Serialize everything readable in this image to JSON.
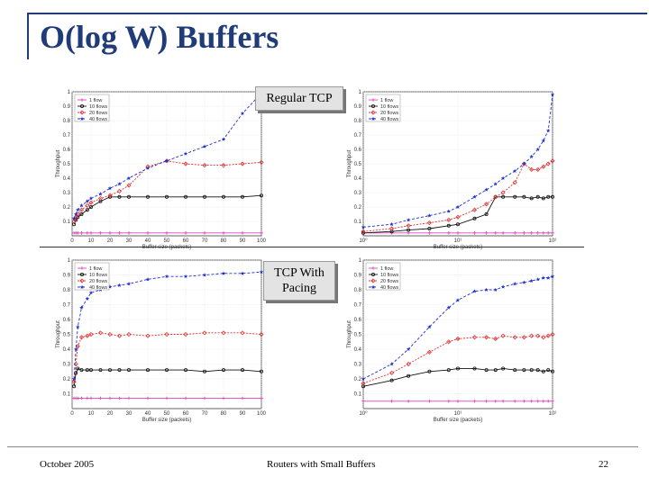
{
  "slide": {
    "title": "O(log W) Buffers",
    "label_regular": "Regular TCP",
    "label_pacing": "TCP With Pacing",
    "footer_left": "October 2005",
    "footer_center": "Routers with Small Buffers",
    "footer_right": "22"
  },
  "legend_labels": [
    "1 flow",
    "10 flows",
    "20 flows",
    "40 flows"
  ],
  "colors": {
    "1 flow": "#e040c0",
    "10 flows": "#111111",
    "20 flows": "#e03030",
    "40 flows": "#2030d0",
    "accent": "#1f3b78"
  },
  "chart_data": [
    {
      "type": "line",
      "xlabel": "Buffer size (packets)",
      "ylabel": "Throughput",
      "xlim": [
        0,
        100
      ],
      "ylim": [
        0,
        1
      ],
      "xticks": [
        0,
        10,
        20,
        30,
        40,
        50,
        60,
        70,
        80,
        90,
        100
      ],
      "yticks": [
        0.1,
        0.2,
        0.3,
        0.4,
        0.5,
        0.6,
        0.7,
        0.8,
        0.9,
        1
      ],
      "x": [
        1,
        2,
        3,
        5,
        8,
        10,
        15,
        20,
        25,
        30,
        40,
        50,
        60,
        70,
        80,
        90,
        100
      ],
      "series": [
        {
          "name": "1 flow",
          "values": [
            0.02,
            0.02,
            0.02,
            0.02,
            0.02,
            0.02,
            0.02,
            0.02,
            0.02,
            0.02,
            0.02,
            0.02,
            0.02,
            0.02,
            0.02,
            0.02,
            0.02
          ]
        },
        {
          "name": "10 flows",
          "values": [
            0.08,
            0.11,
            0.13,
            0.15,
            0.18,
            0.2,
            0.24,
            0.27,
            0.27,
            0.27,
            0.27,
            0.27,
            0.27,
            0.27,
            0.27,
            0.27,
            0.28
          ]
        },
        {
          "name": "20 flows",
          "values": [
            0.1,
            0.13,
            0.15,
            0.18,
            0.21,
            0.23,
            0.26,
            0.28,
            0.31,
            0.35,
            0.48,
            0.52,
            0.5,
            0.49,
            0.49,
            0.5,
            0.51
          ]
        },
        {
          "name": "40 flows",
          "values": [
            0.12,
            0.15,
            0.18,
            0.21,
            0.24,
            0.26,
            0.29,
            0.33,
            0.36,
            0.4,
            0.47,
            0.52,
            0.57,
            0.62,
            0.67,
            0.85,
            0.99
          ]
        }
      ]
    },
    {
      "type": "line",
      "xlabel": "Buffer size (packets)",
      "ylabel": "Throughput",
      "xscale": "log",
      "xlim": [
        1,
        100
      ],
      "ylim": [
        0,
        1
      ],
      "xticks": [
        1,
        10,
        100
      ],
      "xtick_labels": [
        "10⁰",
        "10¹",
        "10²"
      ],
      "yticks": [
        0.1,
        0.2,
        0.3,
        0.4,
        0.5,
        0.6,
        0.7,
        0.8,
        0.9,
        1
      ],
      "x": [
        1,
        2,
        3,
        5,
        8,
        10,
        15,
        20,
        25,
        30,
        40,
        50,
        60,
        70,
        80,
        90,
        100
      ],
      "series": [
        {
          "name": "1 flow",
          "values": [
            0.02,
            0.02,
            0.02,
            0.02,
            0.02,
            0.02,
            0.02,
            0.02,
            0.02,
            0.02,
            0.02,
            0.02,
            0.02,
            0.02,
            0.02,
            0.02,
            0.02
          ]
        },
        {
          "name": "10 flows",
          "values": [
            0.02,
            0.03,
            0.04,
            0.05,
            0.07,
            0.08,
            0.12,
            0.15,
            0.27,
            0.27,
            0.27,
            0.27,
            0.26,
            0.27,
            0.26,
            0.27,
            0.27
          ]
        },
        {
          "name": "20 flows",
          "values": [
            0.03,
            0.05,
            0.07,
            0.09,
            0.11,
            0.13,
            0.18,
            0.22,
            0.27,
            0.3,
            0.37,
            0.5,
            0.46,
            0.46,
            0.48,
            0.5,
            0.52
          ]
        },
        {
          "name": "40 flows",
          "values": [
            0.06,
            0.08,
            0.11,
            0.14,
            0.17,
            0.2,
            0.27,
            0.32,
            0.36,
            0.4,
            0.45,
            0.5,
            0.55,
            0.6,
            0.66,
            0.73,
            0.98
          ]
        }
      ]
    },
    {
      "type": "line",
      "xlabel": "Buffer size (packets)",
      "ylabel": "Throughput",
      "xlim": [
        0,
        100
      ],
      "ylim": [
        0,
        1
      ],
      "xticks": [
        0,
        10,
        20,
        30,
        40,
        50,
        60,
        70,
        80,
        90,
        100
      ],
      "yticks": [
        0.1,
        0.2,
        0.3,
        0.4,
        0.5,
        0.6,
        0.7,
        0.8,
        0.9,
        1
      ],
      "x": [
        1,
        2,
        3,
        5,
        8,
        10,
        15,
        20,
        25,
        30,
        40,
        50,
        60,
        70,
        80,
        90,
        100
      ],
      "series": [
        {
          "name": "1 flow",
          "values": [
            0.07,
            0.07,
            0.07,
            0.07,
            0.07,
            0.07,
            0.07,
            0.07,
            0.07,
            0.07,
            0.07,
            0.07,
            0.07,
            0.07,
            0.07,
            0.07,
            0.07
          ]
        },
        {
          "name": "10 flows",
          "values": [
            0.15,
            0.24,
            0.27,
            0.26,
            0.26,
            0.26,
            0.26,
            0.26,
            0.26,
            0.26,
            0.26,
            0.26,
            0.26,
            0.25,
            0.26,
            0.26,
            0.25
          ]
        },
        {
          "name": "20 flows",
          "values": [
            0.18,
            0.3,
            0.42,
            0.48,
            0.49,
            0.5,
            0.51,
            0.5,
            0.49,
            0.5,
            0.49,
            0.5,
            0.5,
            0.51,
            0.51,
            0.51,
            0.5
          ]
        },
        {
          "name": "40 flows",
          "values": [
            0.2,
            0.4,
            0.55,
            0.68,
            0.74,
            0.78,
            0.8,
            0.82,
            0.83,
            0.84,
            0.87,
            0.89,
            0.89,
            0.9,
            0.91,
            0.91,
            0.92
          ]
        }
      ]
    },
    {
      "type": "line",
      "xlabel": "Buffer size (packets)",
      "ylabel": "Throughput",
      "xscale": "log",
      "xlim": [
        1,
        100
      ],
      "ylim": [
        0,
        1
      ],
      "xticks": [
        1,
        10,
        100
      ],
      "xtick_labels": [
        "10⁰",
        "10¹",
        "10²"
      ],
      "yticks": [
        0.1,
        0.2,
        0.3,
        0.4,
        0.5,
        0.6,
        0.7,
        0.8,
        0.9,
        1
      ],
      "x": [
        1,
        2,
        3,
        5,
        8,
        10,
        15,
        20,
        25,
        30,
        40,
        50,
        60,
        70,
        80,
        90,
        100
      ],
      "series": [
        {
          "name": "1 flow",
          "values": [
            0.05,
            0.05,
            0.05,
            0.05,
            0.05,
            0.05,
            0.05,
            0.05,
            0.05,
            0.05,
            0.05,
            0.05,
            0.05,
            0.05,
            0.05,
            0.05,
            0.05
          ]
        },
        {
          "name": "10 flows",
          "values": [
            0.15,
            0.19,
            0.22,
            0.25,
            0.26,
            0.27,
            0.27,
            0.26,
            0.26,
            0.27,
            0.26,
            0.26,
            0.26,
            0.26,
            0.25,
            0.26,
            0.25
          ]
        },
        {
          "name": "20 flows",
          "values": [
            0.17,
            0.24,
            0.3,
            0.38,
            0.45,
            0.47,
            0.48,
            0.48,
            0.47,
            0.49,
            0.48,
            0.48,
            0.49,
            0.49,
            0.48,
            0.49,
            0.5
          ]
        },
        {
          "name": "40 flows",
          "values": [
            0.2,
            0.3,
            0.4,
            0.55,
            0.68,
            0.73,
            0.79,
            0.8,
            0.8,
            0.82,
            0.84,
            0.85,
            0.86,
            0.87,
            0.88,
            0.88,
            0.89
          ]
        }
      ]
    }
  ]
}
